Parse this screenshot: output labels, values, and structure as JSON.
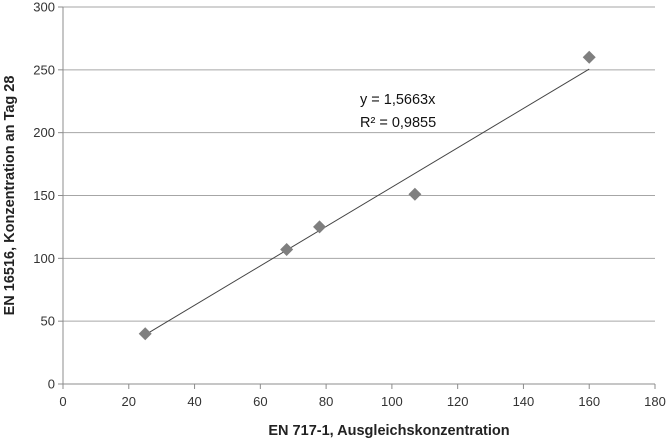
{
  "chart_data": {
    "type": "scatter",
    "title": "",
    "xlabel": "EN 717-1, Ausgleichskonzentration",
    "ylabel": "EN 16516, Konzentration an Tag 28",
    "xlim": [
      0,
      180
    ],
    "ylim": [
      0,
      300
    ],
    "xticks": [
      "0",
      "20",
      "40",
      "60",
      "80",
      "100",
      "120",
      "140",
      "160",
      "180"
    ],
    "yticks": [
      "0",
      "50",
      "100",
      "150",
      "200",
      "250",
      "300"
    ],
    "grid": "horizontal",
    "legend": "none",
    "marker_color": "#7f7f7f",
    "trendline_color": "#444444",
    "points": [
      {
        "x": 25,
        "y": 40
      },
      {
        "x": 68,
        "y": 107
      },
      {
        "x": 78,
        "y": 125
      },
      {
        "x": 107,
        "y": 151
      },
      {
        "x": 160,
        "y": 260
      }
    ],
    "trendline": {
      "slope": 1.5663,
      "x_from": 25,
      "x_to": 160,
      "equation": "y = 1,5663x",
      "r_squared": "R² = 0,9855"
    }
  }
}
